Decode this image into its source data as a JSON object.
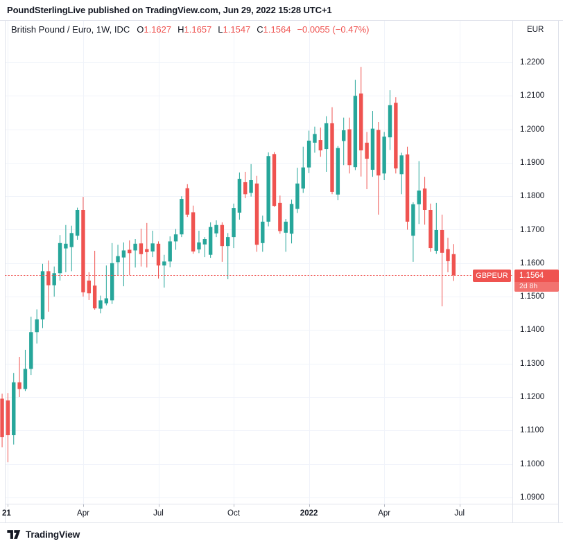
{
  "header": {
    "attribution": "PoundSterlingLive published on TradingView.com, Jun 29, 2022 15:28 UTC+1"
  },
  "legend": {
    "title": "British Pound / Euro, 1W, IDC",
    "items": [
      {
        "prefix": "O",
        "value": "1.1627"
      },
      {
        "prefix": "H",
        "value": "1.1657"
      },
      {
        "prefix": "L",
        "value": "1.1547"
      },
      {
        "prefix": "C",
        "value": "1.1564"
      }
    ],
    "change": "−0.0055 (−0.47%)"
  },
  "price_axis": {
    "currency": "EUR",
    "ticks": [
      "1.2200",
      "1.2100",
      "1.2000",
      "1.1900",
      "1.1800",
      "1.1700",
      "1.1600",
      "1.1500",
      "1.1400",
      "1.1300",
      "1.1200",
      "1.1100",
      "1.1000",
      "1.0900"
    ]
  },
  "time_axis": {
    "labels": [
      {
        "text": "21",
        "bold": true
      },
      {
        "text": "Apr",
        "bold": false
      },
      {
        "text": "Jul",
        "bold": false
      },
      {
        "text": "Oct",
        "bold": false
      },
      {
        "text": "2022",
        "bold": true
      },
      {
        "text": "Apr",
        "bold": false
      },
      {
        "text": "Jul",
        "bold": false
      }
    ]
  },
  "price_line": {
    "label": "GBPEUR"
  },
  "price_tag": {
    "value": "1.1564",
    "countdown": "2d 8h"
  },
  "footer": {
    "brand": "TradingView"
  },
  "colors": {
    "background": "#ffffff",
    "text": "#131722",
    "up": "#26a69a",
    "down": "#ef5350",
    "grid": "#f0f3fa",
    "border": "#e0e3eb",
    "tick": "#b2b5be",
    "price_line": "#ef5350",
    "tag_bg": "#ef5350"
  },
  "chart_data": {
    "type": "candlestick",
    "title": "British Pound / Euro, 1W, IDC",
    "symbol": "GBPEUR",
    "interval": "1W",
    "exchange": "IDC",
    "currency": "EUR",
    "last": {
      "open": 1.1627,
      "high": 1.1657,
      "low": 1.1547,
      "close": 1.1564,
      "change": -0.0055,
      "change_pct": -0.47
    },
    "current_price_line": 1.1564,
    "countdown": "2d 8h",
    "y_axis": {
      "label": "EUR",
      "tick_min": 1.09,
      "tick_max": 1.22,
      "tick_step": 0.01,
      "grid": true
    },
    "x_axis": {
      "labels": [
        "21",
        "Apr",
        "Jul",
        "Oct",
        "2022",
        "Apr",
        "Jul"
      ],
      "period": "weekly",
      "range": "Jan 2021 – Jun 2022",
      "grid": true
    },
    "candles": [
      [
        1.1195,
        1.121,
        1.105,
        1.108
      ],
      [
        1.119,
        1.1212,
        1.1005,
        1.1086
      ],
      [
        1.1086,
        1.1272,
        1.1058,
        1.1244
      ],
      [
        1.1244,
        1.132,
        1.12,
        1.1224
      ],
      [
        1.1224,
        1.1341,
        1.1218,
        1.1284
      ],
      [
        1.1284,
        1.144,
        1.1266,
        1.1394
      ],
      [
        1.1394,
        1.1462,
        1.136,
        1.1432
      ],
      [
        1.1432,
        1.1598,
        1.1406,
        1.1576
      ],
      [
        1.1576,
        1.1608,
        1.1455,
        1.1534
      ],
      [
        1.1534,
        1.159,
        1.15,
        1.157
      ],
      [
        1.157,
        1.1684,
        1.1548,
        1.166
      ],
      [
        1.1644,
        1.1714,
        1.1573,
        1.1658
      ],
      [
        1.1648,
        1.1712,
        1.1576,
        1.169
      ],
      [
        1.1682,
        1.1766,
        1.167,
        1.1759
      ],
      [
        1.1759,
        1.1798,
        1.15,
        1.1513
      ],
      [
        1.1548,
        1.1573,
        1.149,
        1.151
      ],
      [
        1.1533,
        1.1637,
        1.1461,
        1.1465
      ],
      [
        1.1464,
        1.1503,
        1.145,
        1.1489
      ],
      [
        1.148,
        1.1593,
        1.1474,
        1.1495
      ],
      [
        1.1489,
        1.166,
        1.1478,
        1.16
      ],
      [
        1.1603,
        1.1655,
        1.1563,
        1.1621
      ],
      [
        1.1617,
        1.1662,
        1.1531,
        1.1638
      ],
      [
        1.164,
        1.1668,
        1.1564,
        1.163
      ],
      [
        1.1638,
        1.1672,
        1.1587,
        1.1658
      ],
      [
        1.1659,
        1.1703,
        1.159,
        1.1627
      ],
      [
        1.1642,
        1.172,
        1.1587,
        1.1633
      ],
      [
        1.1635,
        1.1697,
        1.1618,
        1.1659
      ],
      [
        1.1658,
        1.1665,
        1.1554,
        1.1593
      ],
      [
        1.1593,
        1.1625,
        1.1527,
        1.1605
      ],
      [
        1.1605,
        1.168,
        1.1588,
        1.1665
      ],
      [
        1.1665,
        1.1702,
        1.164,
        1.1686
      ],
      [
        1.1686,
        1.18,
        1.1678,
        1.1792
      ],
      [
        1.1824,
        1.1836,
        1.1738,
        1.1745
      ],
      [
        1.1752,
        1.1772,
        1.1628,
        1.1635
      ],
      [
        1.1641,
        1.1697,
        1.163,
        1.1662
      ],
      [
        1.1656,
        1.1678,
        1.1618,
        1.1672
      ],
      [
        1.1625,
        1.1722,
        1.1616,
        1.1708
      ],
      [
        1.1689,
        1.1728,
        1.1678,
        1.1714
      ],
      [
        1.1714,
        1.1722,
        1.1604,
        1.1651
      ],
      [
        1.1651,
        1.169,
        1.1552,
        1.1678
      ],
      [
        1.1678,
        1.1778,
        1.1645,
        1.1765
      ],
      [
        1.1751,
        1.1871,
        1.173,
        1.1852
      ],
      [
        1.1842,
        1.1873,
        1.1794,
        1.1806
      ],
      [
        1.181,
        1.1896,
        1.1799,
        1.1848
      ],
      [
        1.1838,
        1.1861,
        1.1634,
        1.1655
      ],
      [
        1.166,
        1.1742,
        1.1634,
        1.1724
      ],
      [
        1.1724,
        1.1931,
        1.171,
        1.192
      ],
      [
        1.1926,
        1.1932,
        1.1768,
        1.1771
      ],
      [
        1.178,
        1.1802,
        1.1688,
        1.1696
      ],
      [
        1.1691,
        1.1732,
        1.1634,
        1.1724
      ],
      [
        1.1688,
        1.179,
        1.1659,
        1.1777
      ],
      [
        1.1762,
        1.1885,
        1.175,
        1.1838
      ],
      [
        1.1823,
        1.1948,
        1.181,
        1.1886
      ],
      [
        1.1886,
        1.1996,
        1.1869,
        1.1966
      ],
      [
        1.196,
        1.2008,
        1.193,
        1.1986
      ],
      [
        1.1968,
        1.2005,
        1.1918,
        1.1937
      ],
      [
        1.1941,
        1.2039,
        1.1873,
        1.2018
      ],
      [
        1.2018,
        1.2066,
        1.1806,
        1.1813
      ],
      [
        1.1805,
        1.195,
        1.1788,
        1.1944
      ],
      [
        1.1965,
        1.2035,
        1.1893,
        1.1997
      ],
      [
        1.2,
        1.2035,
        1.1868,
        1.1893
      ],
      [
        1.1887,
        1.2148,
        1.1878,
        1.21
      ],
      [
        1.2107,
        1.2186,
        1.1859,
        1.1937
      ],
      [
        1.196,
        1.1992,
        1.1821,
        1.1912
      ],
      [
        1.1879,
        1.2055,
        1.1858,
        1.2002
      ],
      [
        1.1998,
        1.2022,
        1.1745,
        1.1862
      ],
      [
        1.1868,
        1.1992,
        1.1848,
        1.1978
      ],
      [
        1.1976,
        1.2117,
        1.1938,
        1.2072
      ],
      [
        1.2079,
        1.2096,
        1.1868,
        1.1883
      ],
      [
        1.1866,
        1.193,
        1.1806,
        1.1922
      ],
      [
        1.1925,
        1.1948,
        1.17,
        1.1724
      ],
      [
        1.1682,
        1.1782,
        1.1604,
        1.1776
      ],
      [
        1.1776,
        1.1905,
        1.1717,
        1.1817
      ],
      [
        1.1823,
        1.1858,
        1.1715,
        1.1759
      ],
      [
        1.1759,
        1.1778,
        1.1634,
        1.1645
      ],
      [
        1.1637,
        1.178,
        1.1628,
        1.1699
      ],
      [
        1.1699,
        1.1745,
        1.1471,
        1.1631
      ],
      [
        1.1642,
        1.1676,
        1.1573,
        1.1606
      ],
      [
        1.1627,
        1.1657,
        1.1547,
        1.1564
      ]
    ]
  }
}
